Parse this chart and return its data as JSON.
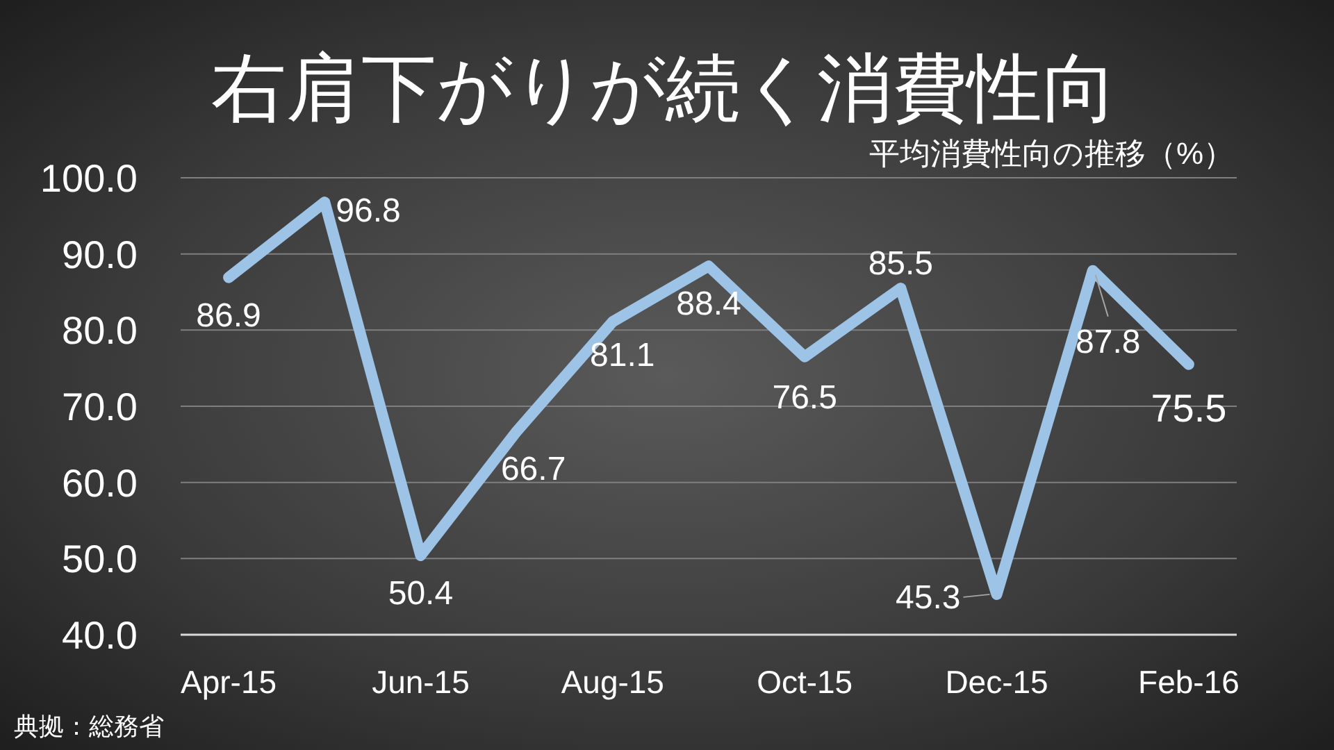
{
  "chart_data": {
    "type": "line",
    "title": "右肩下がりが続く消費性向",
    "subtitle": "平均消費性向の推移（%）",
    "annotations": [
      "典拠：総務省"
    ],
    "categories": [
      "Apr-15",
      null,
      "Jun-15",
      null,
      "Aug-15",
      null,
      "Oct-15",
      null,
      "Dec-15",
      null,
      "Feb-16"
    ],
    "values": [
      86.9,
      96.8,
      50.4,
      66.7,
      81.1,
      88.4,
      76.5,
      85.5,
      45.3,
      87.8,
      75.5
    ],
    "color": "#9dc3e6",
    "ylim": [
      40,
      100
    ],
    "yticks": [
      {
        "value": 40,
        "label": "40.0"
      },
      {
        "value": 50,
        "label": "50.0"
      },
      {
        "value": 60,
        "label": "60.0"
      },
      {
        "value": 70,
        "label": "70.0"
      },
      {
        "value": 80,
        "label": "80.0"
      },
      {
        "value": 90,
        "label": "90.0"
      },
      {
        "value": 100,
        "label": "100.0"
      }
    ],
    "grid": "y",
    "data_labels": true
  }
}
